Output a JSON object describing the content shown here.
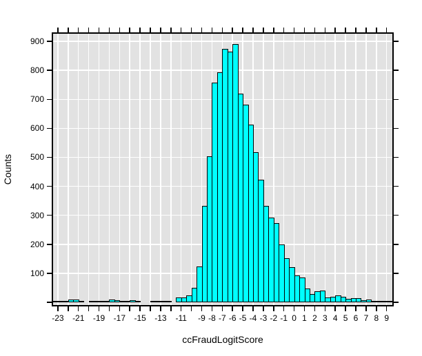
{
  "figure": {
    "background": "#ffffff",
    "panel_background": "#e2e2e2",
    "grid_color": "#ffffff",
    "frame_color": "#000000",
    "bar_fill": "#00ffff",
    "bar_border": "#000000",
    "text_color": "#000000"
  },
  "axes": {
    "ylabel": "Counts",
    "xlabel": "ccFraudLogitScore",
    "x_tick_values": [
      -23,
      -22,
      -21,
      -20,
      -19,
      -18,
      -17,
      -16,
      -15,
      -14,
      -13,
      -12,
      -11,
      -10,
      -9,
      -8,
      -7,
      -6,
      -5,
      -4,
      -3,
      -2,
      -1,
      0,
      1,
      2,
      3,
      4,
      5,
      6,
      7,
      8,
      9
    ],
    "x_tick_labels": [
      -23,
      -21,
      -19,
      -17,
      -15,
      -13,
      -11,
      -9,
      -8,
      -7,
      -6,
      -5,
      -4,
      -3,
      -2,
      -1,
      0,
      1,
      2,
      3,
      4,
      5,
      6,
      7,
      8,
      9
    ],
    "y_tick_values": [
      0,
      100,
      200,
      300,
      400,
      500,
      600,
      700,
      800,
      900
    ],
    "y_tick_labels": [
      100,
      200,
      300,
      400,
      500,
      600,
      700,
      800,
      900
    ],
    "y_grid_values": [
      100,
      200,
      300,
      400,
      500,
      600,
      700,
      800,
      900
    ]
  },
  "chart_data": {
    "type": "bar",
    "subtype": "histogram",
    "title": "",
    "xlabel": "ccFraudLogitScore",
    "ylabel": "Counts",
    "grid": true,
    "bin_start": -23.5,
    "bin_width": 0.5,
    "counts": [
      3,
      3,
      2,
      8,
      7,
      3,
      0,
      3,
      3,
      3,
      3,
      8,
      4,
      3,
      3,
      4,
      3,
      0,
      0,
      2,
      2,
      2,
      2,
      0,
      15,
      15,
      22,
      48,
      120,
      330,
      500,
      755,
      790,
      872,
      862,
      888,
      718,
      680,
      610,
      515,
      420,
      330,
      290,
      270,
      197,
      150,
      118,
      90,
      82,
      46,
      25,
      36,
      38,
      14,
      17,
      22,
      17,
      10,
      12,
      12,
      4,
      6,
      3,
      2,
      1,
      1
    ],
    "xlim": [
      -23.6,
      9.69
    ],
    "ylim": [
      0,
      931
    ]
  }
}
